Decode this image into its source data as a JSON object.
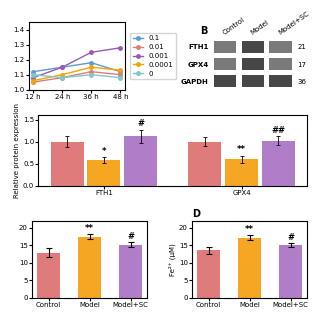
{
  "chart_data": [
    {
      "type": "line",
      "categories": [
        "12 h",
        "24 h",
        "36 h",
        "48 h"
      ],
      "marker": "o",
      "legend": "center left",
      "series": [
        {
          "name": "0.1",
          "color": "#5b9bd5",
          "values": [
            1.12,
            1.15,
            1.18,
            1.12
          ]
        },
        {
          "name": "0.01",
          "color": "#e07b7b",
          "values": [
            1.05,
            1.08,
            1.12,
            1.1
          ]
        },
        {
          "name": "0.001",
          "color": "#9b59b6",
          "values": [
            1.08,
            1.15,
            1.25,
            1.28
          ]
        },
        {
          "name": "0.0001",
          "color": "#f0a500",
          "values": [
            1.06,
            1.1,
            1.15,
            1.13
          ]
        },
        {
          "name": "0",
          "color": "#7ec8c8",
          "values": [
            1.1,
            1.08,
            1.1,
            1.08
          ]
        }
      ],
      "ylim": [
        1.0,
        1.45
      ],
      "yticks": [
        1.0,
        1.1,
        1.2,
        1.3,
        1.4
      ]
    },
    {
      "type": "blot",
      "title": "B",
      "categories": [
        "Control",
        "Model",
        "Model+SC"
      ],
      "rows": [
        "FTH1",
        "GPX4",
        "GAPDH"
      ],
      "row_numbers": [
        "21",
        "17",
        "36"
      ],
      "colors": [
        [
          "0.48",
          "0.28",
          "0.48"
        ],
        [
          "0.48",
          "0.28",
          "0.48"
        ],
        [
          "0.28",
          "0.28",
          "0.28"
        ]
      ]
    },
    {
      "type": "bar",
      "categories": [
        "FTH1",
        "GPX4"
      ],
      "ylabel": "Relative protein expression",
      "ylim": [
        0.0,
        1.6
      ],
      "yticks": [
        0.0,
        0.5,
        1.0,
        1.5
      ],
      "series": [
        {
          "color": "#e07b7b",
          "values": [
            1.0,
            1.0
          ],
          "errors": [
            0.12,
            0.1
          ]
        },
        {
          "color": "#f5a623",
          "values": [
            0.58,
            0.6
          ],
          "errors": [
            0.07,
            0.08
          ],
          "annotations": [
            "*",
            "**"
          ]
        },
        {
          "color": "#b07ec8",
          "values": [
            1.12,
            1.02
          ],
          "errors": [
            0.15,
            0.1
          ],
          "annotations": [
            "#",
            "##"
          ]
        }
      ]
    },
    {
      "type": "bar",
      "categories": [
        "Control",
        "Model",
        "Model+SC"
      ],
      "values": [
        12.8,
        17.5,
        15.2
      ],
      "errors": [
        1.3,
        0.7,
        0.6
      ],
      "colors": [
        "#e07b7b",
        "#f5a623",
        "#b07ec8"
      ],
      "annotations": [
        null,
        "**",
        "#"
      ],
      "ylim": [
        0,
        22
      ],
      "yticks": [
        0,
        5,
        10,
        15,
        20
      ]
    },
    {
      "type": "bar",
      "title": "D",
      "categories": [
        "Control",
        "Model",
        "Model+SC"
      ],
      "values": [
        13.5,
        17.2,
        15.1
      ],
      "errors": [
        1.0,
        0.6,
        0.5
      ],
      "colors": [
        "#e07b7b",
        "#f5a623",
        "#b07ec8"
      ],
      "annotations": [
        null,
        "**",
        "#"
      ],
      "ylabel": "Fe²⁺ (μM)",
      "ylim": [
        0,
        22
      ],
      "yticks": [
        0,
        5,
        10,
        15,
        20
      ]
    }
  ]
}
